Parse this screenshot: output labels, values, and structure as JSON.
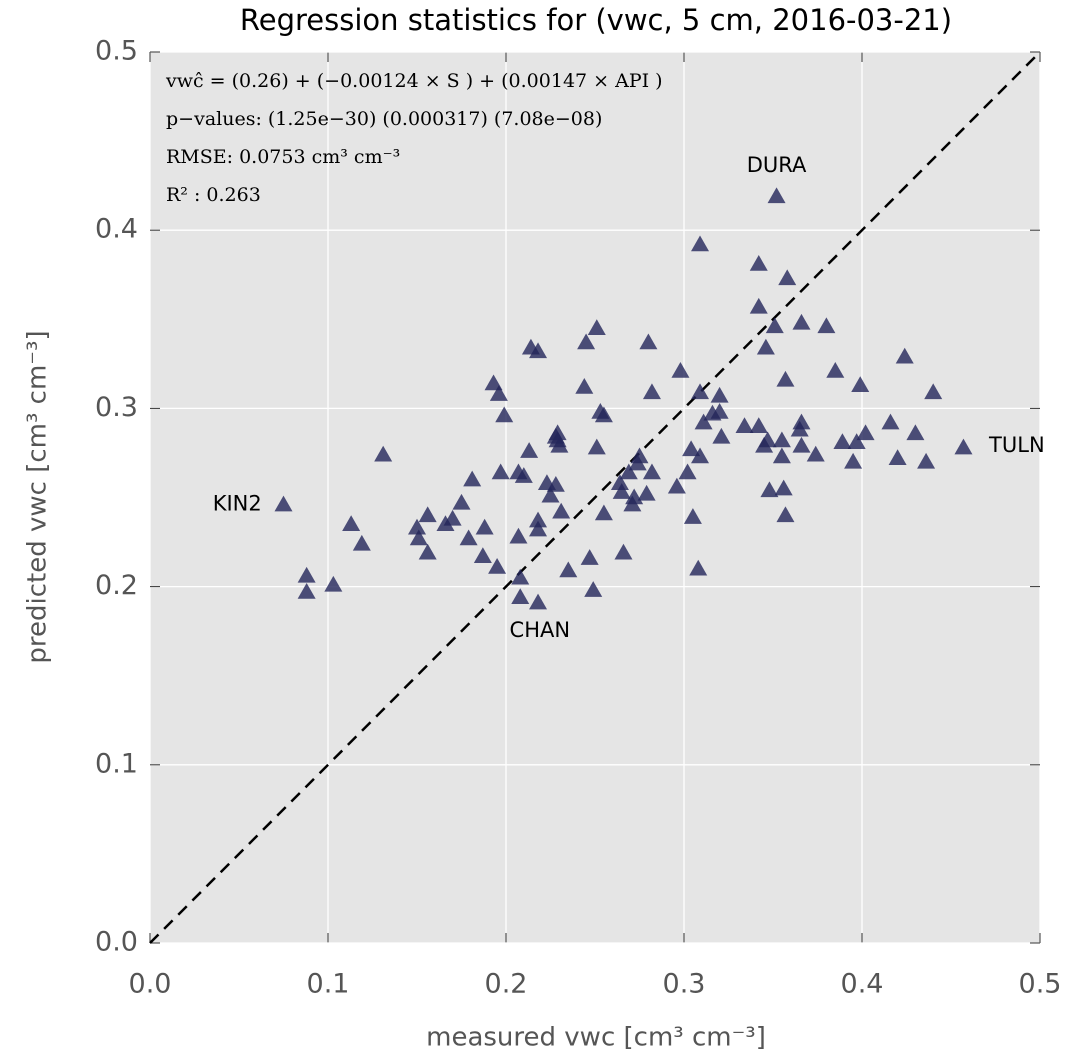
{
  "chart_data": {
    "type": "scatter",
    "title": "Regression statistics for (vwc, 5 cm, 2016-03-21)",
    "x_label": "measured vwc [cm³  cm⁻³]",
    "y_label": "predicted vwc [cm³  cm⁻³]",
    "stats_text": [
      "vwĉ = (0.26) + (−0.00124 × S ) + (0.00147 × API )",
      "p−values: (1.25e−30) (0.000317) (7.08e−08)",
      "RMSE: 0.0753 cm³ cm⁻³",
      "R² : 0.263"
    ],
    "x": [
      0.075,
      0.088,
      0.088,
      0.103,
      0.113,
      0.119,
      0.131,
      0.15,
      0.151,
      0.156,
      0.156,
      0.166,
      0.17,
      0.175,
      0.181,
      0.179,
      0.188,
      0.187,
      0.193,
      0.196,
      0.195,
      0.197,
      0.199,
      0.207,
      0.21,
      0.207,
      0.208,
      0.208,
      0.213,
      0.214,
      0.218,
      0.218,
      0.218,
      0.218,
      0.223,
      0.225,
      0.228,
      0.229,
      0.229,
      0.23,
      0.228,
      0.231,
      0.235,
      0.244,
      0.245,
      0.251,
      0.247,
      0.249,
      0.251,
      0.253,
      0.255,
      0.255,
      0.266,
      0.264,
      0.265,
      0.269,
      0.271,
      0.272,
      0.274,
      0.275,
      0.28,
      0.279,
      0.282,
      0.282,
      0.296,
      0.298,
      0.302,
      0.304,
      0.305,
      0.308,
      0.309,
      0.309,
      0.309,
      0.311,
      0.316,
      0.32,
      0.32,
      0.321,
      0.334,
      0.342,
      0.342,
      0.342,
      0.345,
      0.346,
      0.347,
      0.348,
      0.351,
      0.352,
      0.355,
      0.355,
      0.356,
      0.357,
      0.357,
      0.358,
      0.365,
      0.366,
      0.366,
      0.366,
      0.374,
      0.38,
      0.385,
      0.389,
      0.395,
      0.397,
      0.399,
      0.402,
      0.416,
      0.42,
      0.424,
      0.43,
      0.436,
      0.44,
      0.457
    ],
    "series": [
      {
        "name": "stations",
        "color": "#23255a",
        "values": [
          0.246,
          0.206,
          0.197,
          0.201,
          0.235,
          0.224,
          0.274,
          0.233,
          0.227,
          0.24,
          0.219,
          0.235,
          0.238,
          0.247,
          0.26,
          0.227,
          0.233,
          0.217,
          0.314,
          0.308,
          0.211,
          0.264,
          0.296,
          0.264,
          0.262,
          0.228,
          0.205,
          0.194,
          0.276,
          0.334,
          0.332,
          0.237,
          0.232,
          0.191,
          0.258,
          0.251,
          0.284,
          0.286,
          0.282,
          0.279,
          0.257,
          0.242,
          0.209,
          0.312,
          0.337,
          0.345,
          0.216,
          0.198,
          0.278,
          0.298,
          0.296,
          0.241,
          0.219,
          0.258,
          0.253,
          0.264,
          0.246,
          0.25,
          0.269,
          0.273,
          0.337,
          0.252,
          0.264,
          0.309,
          0.256,
          0.321,
          0.264,
          0.277,
          0.239,
          0.21,
          0.392,
          0.309,
          0.273,
          0.292,
          0.297,
          0.307,
          0.298,
          0.284,
          0.29,
          0.381,
          0.357,
          0.29,
          0.279,
          0.334,
          0.282,
          0.254,
          0.346,
          0.419,
          0.273,
          0.282,
          0.255,
          0.24,
          0.316,
          0.373,
          0.288,
          0.292,
          0.279,
          0.348,
          0.274,
          0.346,
          0.321,
          0.281,
          0.27,
          0.281,
          0.313,
          0.286,
          0.292,
          0.272,
          0.329,
          0.286,
          0.27,
          0.309,
          0.278
        ]
      }
    ],
    "annotations": [
      {
        "text": "DURA",
        "x": 0.352,
        "y": 0.436
      },
      {
        "text": "TULN",
        "x": 0.487,
        "y": 0.279
      },
      {
        "text": "KIN2",
        "x": 0.049,
        "y": 0.246
      },
      {
        "text": "CHAN",
        "x": 0.219,
        "y": 0.175
      }
    ],
    "reference_line": {
      "x": [
        0,
        0.5
      ],
      "y": [
        0,
        0.5
      ],
      "color": "#000000"
    },
    "xlim": [
      0,
      0.5
    ],
    "ylim": [
      0,
      0.5
    ],
    "xticks": [
      {
        "value": 0,
        "label": "0.0"
      },
      0.1,
      0.2,
      0.3,
      0.4,
      0.5
    ],
    "yticks": [
      {
        "value": 0,
        "label": "0.0"
      },
      0.1,
      0.2,
      0.3,
      0.4,
      0.5
    ],
    "grid": true
  }
}
